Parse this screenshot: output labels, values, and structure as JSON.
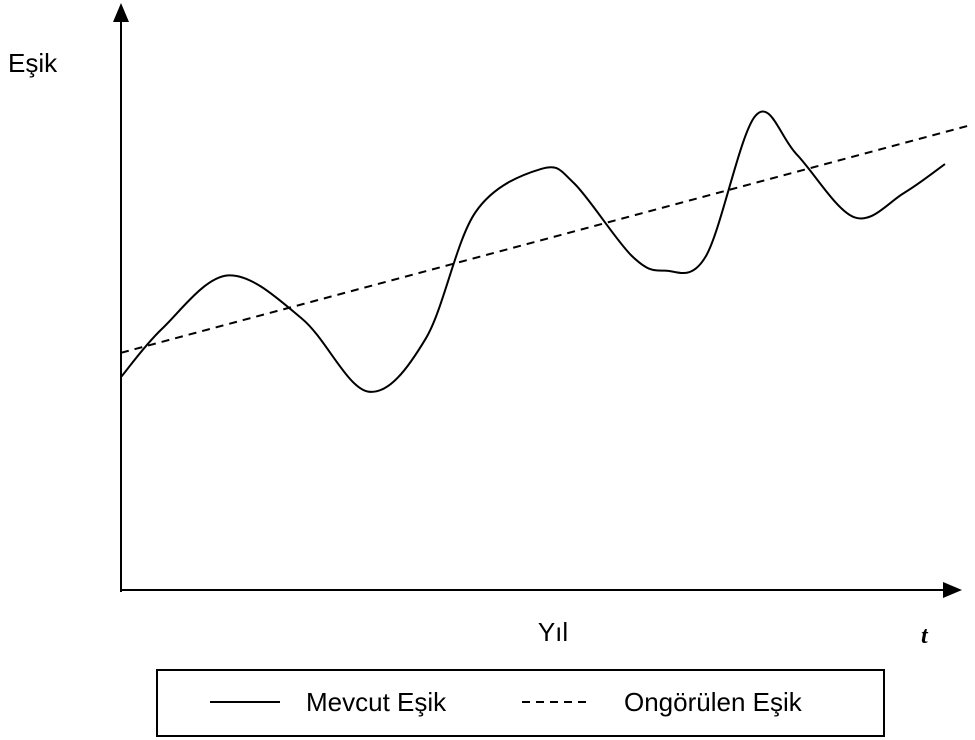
{
  "chart_data": {
    "type": "line",
    "ylabel": "Eşik",
    "xlabel": "Yıl",
    "x_axis_end_label": "t",
    "ticks": "none",
    "grid": false,
    "legend_placement": "bottom",
    "series": [
      {
        "name": "Mevcut Eşik",
        "style": "solid",
        "x": [
          0.0,
          0.05,
          0.13,
          0.22,
          0.3,
          0.37,
          0.43,
          0.51,
          0.55,
          0.62,
          0.66,
          0.71,
          0.77,
          0.82,
          0.89,
          0.95,
          1.0
        ],
        "y": [
          0.44,
          0.54,
          0.65,
          0.56,
          0.41,
          0.52,
          0.78,
          0.87,
          0.84,
          0.69,
          0.66,
          0.69,
          0.98,
          0.9,
          0.77,
          0.82,
          0.88
        ]
      },
      {
        "name": "Ongörülen Eşik",
        "style": "dashed",
        "x": [
          0.0,
          1.03
        ],
        "y": [
          0.49,
          0.96
        ]
      }
    ],
    "colors": {
      "axis": "#000000",
      "line": "#000000"
    }
  }
}
